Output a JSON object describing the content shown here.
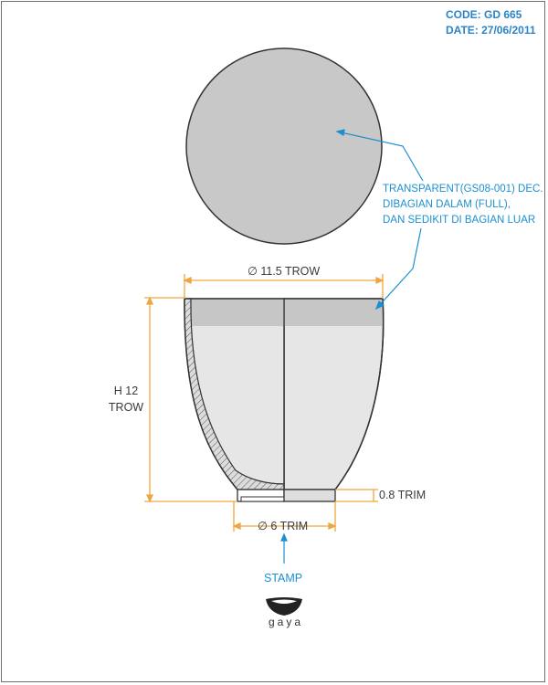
{
  "header": {
    "code": "CODE: GD 665",
    "date": "DATE: 27/06/2011"
  },
  "note": {
    "line1": "TRANSPARENT(GS08-001) DEC.",
    "line2": "DIBAGIAN DALAM (FULL),",
    "line3": "DAN SEDIKIT DI BAGIAN LUAR"
  },
  "dimensions": {
    "top_diameter": "∅ 11.5 TROW",
    "height_line1": "H 12",
    "height_line2": "TROW",
    "foot_diameter": "∅ 6 TRIM",
    "foot_height": "0.8 TRIM"
  },
  "stamp": {
    "label": "STAMP",
    "brand": "gaya"
  },
  "colors": {
    "accent_blue": "#1c8fd0",
    "dimension_orange": "#f0a640",
    "glaze_gray": "#cfcfcf",
    "body_light": "#e6e6e6",
    "outline": "#333333"
  }
}
